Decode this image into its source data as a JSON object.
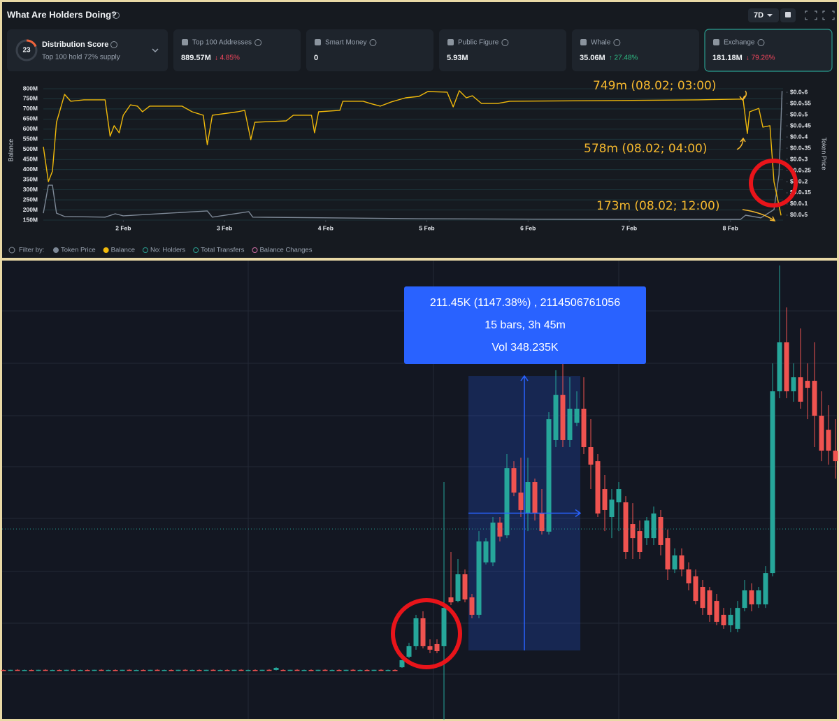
{
  "header": {
    "title": "What Are Holders Doing?",
    "range": "7D"
  },
  "distribution": {
    "label": "Distribution Score",
    "score": 23,
    "note": "Top 100 hold 72% supply"
  },
  "cards": [
    {
      "label": "Top 100 Addresses",
      "value": "889.57M",
      "change": "↓ 4.85%"
    },
    {
      "label": "Smart Money",
      "value": "0"
    },
    {
      "label": "Public Figure",
      "value": "5.93M"
    },
    {
      "label": "Whale",
      "value": "35.06M",
      "change": "↑ 27.48%"
    },
    {
      "label": "Exchange",
      "value": "181.18M",
      "change": "↓ 79.26%"
    }
  ],
  "filter": {
    "label": "Filter by:",
    "options": [
      "No: Holders",
      "Total Transfers",
      "Balance Changes"
    ]
  },
  "chart_data": [
    {
      "type": "line",
      "ylabel": "Balance",
      "y2label": "Token Price",
      "grid": true,
      "xlim": [
        1.21,
        8.52
      ],
      "ylim": [
        150000000,
        800000000
      ],
      "y2lim": [
        2.8e-07,
        6.16e-06
      ],
      "xticks": [
        {
          "value": 2,
          "label": "2 Feb"
        },
        {
          "value": 3,
          "label": "3 Feb"
        },
        {
          "value": 4,
          "label": "4 Feb"
        },
        {
          "value": 5,
          "label": "5 Feb"
        },
        {
          "value": 6,
          "label": "6 Feb"
        },
        {
          "value": 7,
          "label": "7 Feb"
        },
        {
          "value": 8,
          "label": "8 Feb"
        }
      ],
      "yticks": [
        {
          "value": 150000000,
          "label": "150M"
        },
        {
          "value": 200000000,
          "label": "200M"
        },
        {
          "value": 250000000,
          "label": "250M"
        },
        {
          "value": 300000000,
          "label": "300M"
        },
        {
          "value": 350000000,
          "label": "350M"
        },
        {
          "value": 400000000,
          "label": "400M"
        },
        {
          "value": 450000000,
          "label": "450M"
        },
        {
          "value": 500000000,
          "label": "500M"
        },
        {
          "value": 550000000,
          "label": "550M"
        },
        {
          "value": 600000000,
          "label": "600M"
        },
        {
          "value": 650000000,
          "label": "650M"
        },
        {
          "value": 700000000,
          "label": "700M"
        },
        {
          "value": 750000000,
          "label": "750M"
        },
        {
          "value": 800000000,
          "label": "800M"
        }
      ],
      "y2ticks": [
        {
          "value": 6e-06,
          "label": "$0.0₅6"
        },
        {
          "value": 5.5e-06,
          "label": "$0.0₅55"
        },
        {
          "value": 5e-06,
          "label": "$0.0₅5"
        },
        {
          "value": 4.5e-06,
          "label": "$0.0₅45"
        },
        {
          "value": 4e-06,
          "label": "$0.0₅4"
        },
        {
          "value": 3.5e-06,
          "label": "$0.0₅35"
        },
        {
          "value": 3e-06,
          "label": "$0.0₅3"
        },
        {
          "value": 2.5e-06,
          "label": "$0.0₅25"
        },
        {
          "value": 2e-06,
          "label": "$0.0₅2"
        },
        {
          "value": 1.5e-06,
          "label": "$0.0₅15"
        },
        {
          "value": 1e-06,
          "label": "$0.0₅1"
        },
        {
          "value": 5e-07,
          "label": "$0.0₆5"
        }
      ],
      "series": [
        {
          "name": "Token Price",
          "color": "#7d8896",
          "axis": "y2",
          "x": [
            1.21,
            1.26,
            1.3,
            1.34,
            1.42,
            1.82,
            1.92,
            2.0,
            2.83,
            2.88,
            3.24,
            3.28,
            4.92,
            6.72,
            8.1,
            8.15,
            8.3,
            8.43,
            8.48,
            8.51
          ],
          "values": [
            5.9e-07,
            1.84e-06,
            1.84e-06,
            5.9e-07,
            4.4e-07,
            4.1e-07,
            5.6e-07,
            4.7e-07,
            6.9e-07,
            4.1e-07,
            6.6e-07,
            4.1e-07,
            3.4e-07,
            3.1e-07,
            3.1e-07,
            5e-07,
            3.8e-07,
            7.5e-07,
            2.31e-06,
            6.06e-06
          ]
        },
        {
          "name": "Balance",
          "color": "#f0b90b",
          "x": [
            1.21,
            1.26,
            1.3,
            1.34,
            1.42,
            1.48,
            1.61,
            1.82,
            1.87,
            1.91,
            1.96,
            2.0,
            2.07,
            2.14,
            2.19,
            2.26,
            2.58,
            2.68,
            2.79,
            2.83,
            2.88,
            3.13,
            3.2,
            3.26,
            3.3,
            3.61,
            3.68,
            3.86,
            3.89,
            3.93,
            4.14,
            4.17,
            4.37,
            4.44,
            4.54,
            4.65,
            4.79,
            4.92,
            5.01,
            5.2,
            5.26,
            5.32,
            5.39,
            5.45,
            5.54,
            5.7,
            5.82,
            6.72,
            7.68,
            8.125,
            8.167,
            8.19,
            8.28,
            8.32,
            8.39,
            8.43,
            8.5
          ],
          "values": [
            513000000,
            340000000,
            392000000,
            634000000,
            772000000,
            738000000,
            745000000,
            745000000,
            565000000,
            617000000,
            582000000,
            669000000,
            720000000,
            714000000,
            686000000,
            714000000,
            714000000,
            686000000,
            669000000,
            523000000,
            669000000,
            686000000,
            693000000,
            548000000,
            634000000,
            641000000,
            669000000,
            669000000,
            582000000,
            686000000,
            693000000,
            738000000,
            738000000,
            727000000,
            714000000,
            735000000,
            755000000,
            762000000,
            786000000,
            783000000,
            710000000,
            790000000,
            755000000,
            765000000,
            727000000,
            727000000,
            738000000,
            741000000,
            745000000,
            749000000,
            578000000,
            686000000,
            703000000,
            610000000,
            617000000,
            340000000,
            173000000
          ]
        }
      ],
      "annotations": [
        "749m (08.02; 03:00)",
        "578m (08.02; 04:00)",
        "173m (08.02; 12:00)"
      ]
    },
    {
      "type": "candlestick",
      "up_color": "#26a69a",
      "down_color": "#ef5350",
      "ylim": [
        -35.9,
        319.2
      ],
      "price_line": 112.0,
      "measure": {
        "low": 18.43,
        "high": 229.88,
        "first_bar": 67,
        "last_bar": 82
      },
      "tooltip": [
        "211.45K (1147.38%) , 2114506761056",
        "15 bars, 3h 45m",
        "Vol 348.235K"
      ],
      "candles": [
        [
          3.4,
          3.9,
          2.9,
          3.0
        ],
        [
          3.0,
          3.6,
          2.6,
          3.5
        ],
        [
          3.5,
          4.0,
          3.1,
          3.2
        ],
        [
          3.2,
          3.7,
          2.8,
          3.4
        ],
        [
          3.4,
          3.9,
          2.9,
          3.0
        ],
        [
          3.0,
          3.6,
          2.6,
          3.5
        ],
        [
          3.5,
          4.0,
          3.1,
          3.2
        ],
        [
          3.2,
          3.7,
          2.8,
          3.4
        ],
        [
          3.4,
          3.9,
          2.9,
          3.0
        ],
        [
          3.0,
          3.6,
          2.6,
          3.5
        ],
        [
          3.5,
          4.0,
          3.1,
          3.2
        ],
        [
          3.2,
          3.7,
          2.8,
          3.4
        ],
        [
          3.4,
          3.9,
          2.9,
          3.0
        ],
        [
          3.0,
          3.6,
          2.6,
          3.5
        ],
        [
          3.5,
          4.0,
          3.1,
          3.2
        ],
        [
          3.2,
          3.7,
          2.8,
          3.4
        ],
        [
          3.4,
          3.9,
          2.9,
          3.0
        ],
        [
          3.0,
          3.6,
          2.6,
          3.5
        ],
        [
          3.5,
          4.0,
          3.1,
          3.2
        ],
        [
          3.2,
          3.7,
          2.8,
          3.4
        ],
        [
          3.4,
          3.9,
          2.9,
          3.0
        ],
        [
          3.0,
          3.6,
          2.6,
          3.5
        ],
        [
          3.5,
          4.0,
          3.1,
          3.2
        ],
        [
          3.2,
          3.7,
          2.8,
          3.4
        ],
        [
          3.4,
          3.9,
          2.9,
          3.0
        ],
        [
          3.0,
          3.6,
          2.6,
          3.5
        ],
        [
          3.5,
          4.0,
          3.1,
          3.2
        ],
        [
          3.2,
          3.7,
          2.8,
          3.4
        ],
        [
          3.4,
          3.9,
          2.9,
          3.0
        ],
        [
          3.0,
          3.6,
          2.6,
          3.5
        ],
        [
          3.5,
          4.0,
          3.1,
          3.2
        ],
        [
          3.2,
          3.7,
          2.8,
          3.4
        ],
        [
          3.4,
          3.9,
          2.9,
          3.0
        ],
        [
          3.0,
          3.6,
          2.6,
          3.5
        ],
        [
          3.5,
          4.0,
          3.1,
          3.2
        ],
        [
          3.2,
          3.7,
          2.8,
          3.4
        ],
        [
          3.4,
          3.9,
          2.9,
          3.0
        ],
        [
          3.0,
          3.6,
          2.6,
          3.5
        ],
        [
          3.5,
          4.0,
          3.1,
          3.2
        ],
        [
          3.4,
          5.6,
          3.0,
          5.0
        ],
        [
          3.4,
          3.9,
          2.9,
          3.0
        ],
        [
          3.0,
          3.6,
          2.6,
          3.5
        ],
        [
          3.5,
          4.0,
          3.1,
          3.2
        ],
        [
          3.2,
          3.7,
          2.8,
          3.4
        ],
        [
          3.4,
          3.9,
          2.9,
          3.0
        ],
        [
          3.0,
          3.6,
          2.6,
          3.5
        ],
        [
          3.5,
          4.0,
          3.1,
          3.2
        ],
        [
          3.2,
          3.7,
          2.8,
          3.4
        ],
        [
          3.4,
          3.9,
          2.9,
          3.0
        ],
        [
          3.0,
          3.6,
          2.6,
          3.5
        ],
        [
          3.5,
          4.0,
          3.1,
          3.2
        ],
        [
          3.2,
          3.7,
          2.8,
          3.4
        ],
        [
          3.4,
          3.9,
          2.9,
          3.0
        ],
        [
          3.0,
          3.6,
          2.6,
          3.5
        ],
        [
          3.5,
          4.0,
          3.1,
          3.2
        ],
        [
          3.2,
          3.7,
          2.8,
          3.4
        ],
        [
          3.4,
          3.9,
          2.9,
          3.0
        ],
        [
          5.5,
          11.0,
          5.0,
          10.9
        ],
        [
          13.6,
          24.3,
          12.5,
          21.7
        ],
        [
          21.7,
          45.9,
          19.0,
          43.2
        ],
        [
          43.2,
          48.6,
          20.0,
          21.7
        ],
        [
          21.7,
          27.0,
          16.3,
          19.0
        ],
        [
          23.3,
          27.0,
          16.3,
          17.9
        ],
        [
          21.7,
          148.1,
          -35.0,
          51.2
        ],
        [
          59.3,
          94.3,
          53.4,
          55.5
        ],
        [
          56.6,
          88.9,
          55.5,
          77.1
        ],
        [
          77.1,
          80.8,
          55.5,
          57.7
        ],
        [
          59.3,
          62.0,
          43.2,
          45.9
        ],
        [
          45.9,
          110.4,
          43.2,
          102.4
        ],
        [
          86.2,
          105.0,
          84.6,
          102.4
        ],
        [
          86.2,
          121.2,
          83.5,
          116.9
        ],
        [
          116.9,
          121.2,
          102.4,
          106.1
        ],
        [
          107.1,
          169.6,
          105.0,
          158.8
        ],
        [
          158.8,
          164.2,
          137.3,
          140.0
        ],
        [
          140.0,
          166.9,
          121.2,
          126.6
        ],
        [
          123.9,
          166.9,
          110.4,
          148.1
        ],
        [
          148.1,
          150.8,
          118.5,
          123.9
        ],
        [
          123.9,
          142.7,
          107.7,
          110.4
        ],
        [
          109.9,
          201.9,
          107.7,
          196.5
        ],
        [
          180.4,
          234.2,
          175.0,
          215.3
        ],
        [
          215.3,
          255.7,
          175.0,
          180.4
        ],
        [
          180.4,
          228.8,
          175.0,
          204.6
        ],
        [
          193.8,
          218.0,
          191.1,
          204.6
        ],
        [
          204.6,
          228.8,
          169.6,
          175.0
        ],
        [
          175.0,
          196.5,
          142.7,
          161.5
        ],
        [
          164.2,
          169.6,
          121.2,
          123.9
        ],
        [
          142.7,
          153.5,
          110.4,
          126.6
        ],
        [
          121.2,
          142.7,
          105.0,
          134.6
        ],
        [
          132.5,
          148.1,
          110.4,
          142.7
        ],
        [
          132.5,
          137.3,
          88.9,
          94.3
        ],
        [
          115.8,
          131.9,
          88.9,
          105.0
        ],
        [
          110.4,
          118.5,
          88.9,
          94.3
        ],
        [
          105.0,
          121.2,
          99.7,
          118.5
        ],
        [
          105.0,
          129.3,
          99.7,
          123.9
        ],
        [
          121.2,
          126.6,
          91.6,
          99.7
        ],
        [
          105.0,
          111.5,
          72.8,
          80.8
        ],
        [
          80.8,
          97.0,
          78.1,
          91.6
        ],
        [
          91.6,
          97.0,
          75.5,
          80.8
        ],
        [
          80.8,
          86.2,
          64.7,
          70.1
        ],
        [
          75.5,
          80.8,
          53.9,
          56.6
        ],
        [
          67.4,
          72.8,
          45.9,
          51.2
        ],
        [
          64.7,
          67.4,
          40.5,
          45.9
        ],
        [
          56.6,
          62.0,
          37.8,
          40.5
        ],
        [
          45.9,
          51.2,
          35.1,
          37.8
        ],
        [
          37.8,
          51.2,
          32.4,
          45.9
        ],
        [
          35.1,
          56.6,
          32.4,
          51.2
        ],
        [
          51.2,
          72.8,
          48.6,
          64.7
        ],
        [
          64.7,
          70.1,
          48.6,
          53.9
        ],
        [
          53.9,
          67.4,
          51.2,
          64.7
        ],
        [
          53.9,
          83.5,
          51.2,
          78.1
        ],
        [
          78.1,
          239.5,
          75.5,
          218.0
        ],
        [
          218.0,
          314.9,
          212.7,
          255.7
        ],
        [
          255.7,
          282.6,
          212.7,
          218.0
        ],
        [
          218.0,
          239.5,
          210.0,
          228.8
        ],
        [
          228.8,
          266.4,
          204.6,
          210.0
        ],
        [
          226.1,
          239.5,
          196.5,
          220.7
        ],
        [
          226.1,
          255.7,
          175.0,
          199.2
        ],
        [
          199.2,
          218.0,
          164.2,
          172.3
        ],
        [
          188.4,
          207.3,
          161.5,
          172.3
        ],
        [
          172.3,
          196.5,
          150.8,
          164.2
        ]
      ]
    }
  ]
}
